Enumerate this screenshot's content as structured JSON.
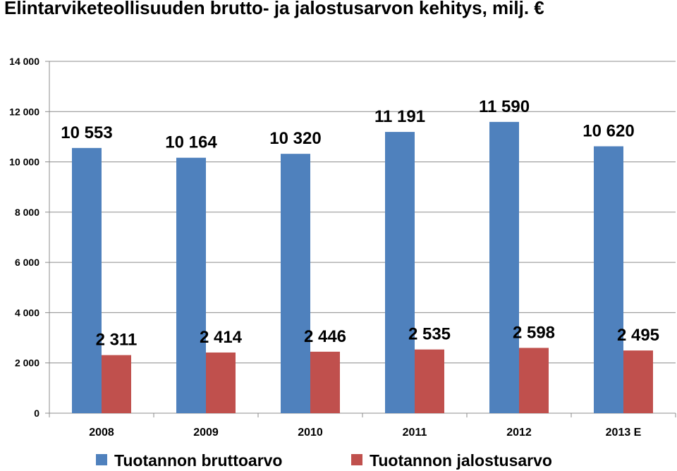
{
  "chart_data": {
    "type": "bar",
    "title": "Elintarviketeollisuuden brutto- ja jalostusarvon kehitys, milj. €",
    "categories": [
      "2008",
      "2009",
      "2010",
      "2011",
      "2012",
      "2013 E"
    ],
    "series": [
      {
        "name": "Tuotannon bruttoarvo",
        "color": "#4f81bd",
        "values": [
          10553,
          10164,
          10320,
          11191,
          11590,
          10620
        ],
        "labels": [
          "10 553",
          "10 164",
          "10 320",
          "11 191",
          "11 590",
          "10 620"
        ]
      },
      {
        "name": "Tuotannon jalostusarvo",
        "color": "#c0504d",
        "values": [
          2311,
          2414,
          2446,
          2535,
          2598,
          2495
        ],
        "labels": [
          "2 311",
          "2 414",
          "2 446",
          "2 535",
          "2 598",
          "2 495"
        ]
      }
    ],
    "ylim": [
      0,
      14000
    ],
    "yticks": [
      0,
      2000,
      4000,
      6000,
      8000,
      10000,
      12000,
      14000
    ],
    "ytick_labels": [
      "0",
      "2 000",
      "4 000",
      "6 000",
      "8 000",
      "10 000",
      "12 000",
      "14 000"
    ],
    "grid": true,
    "gridline_color": "#8c8c8c",
    "legend_position": "bottom"
  }
}
